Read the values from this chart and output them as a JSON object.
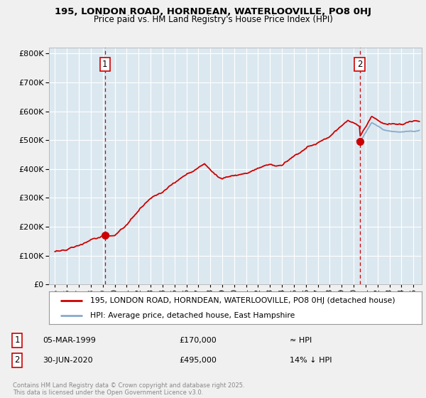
{
  "title_line1": "195, LONDON ROAD, HORNDEAN, WATERLOOVILLE, PO8 0HJ",
  "title_line2": "Price paid vs. HM Land Registry's House Price Index (HPI)",
  "ytick_values": [
    0,
    100000,
    200000,
    300000,
    400000,
    500000,
    600000,
    700000,
    800000
  ],
  "ylim": [
    0,
    820000
  ],
  "xlim_start": 1994.5,
  "xlim_end": 2025.7,
  "xticks": [
    1995,
    1996,
    1997,
    1998,
    1999,
    2000,
    2001,
    2002,
    2003,
    2004,
    2005,
    2006,
    2007,
    2008,
    2009,
    2010,
    2011,
    2012,
    2013,
    2014,
    2015,
    2016,
    2017,
    2018,
    2019,
    2020,
    2021,
    2022,
    2023,
    2024,
    2025
  ],
  "purchase1_x": 1999.17,
  "purchase1_y": 170000,
  "purchase2_x": 2020.5,
  "purchase2_y": 495000,
  "vline1_x": 1999.17,
  "vline2_x": 2020.5,
  "vline_color": "#cc0000",
  "legend_line1": "195, LONDON ROAD, HORNDEAN, WATERLOOVILLE, PO8 0HJ (detached house)",
  "legend_line2": "HPI: Average price, detached house, East Hampshire",
  "annotation1_date": "05-MAR-1999",
  "annotation1_price": "£170,000",
  "annotation1_hpi": "≈ HPI",
  "annotation2_date": "30-JUN-2020",
  "annotation2_price": "£495,000",
  "annotation2_hpi": "14% ↓ HPI",
  "footer": "Contains HM Land Registry data © Crown copyright and database right 2025.\nThis data is licensed under the Open Government Licence v3.0.",
  "red_line_color": "#cc0000",
  "blue_line_color": "#88aacc",
  "plot_bg_color": "#dce8f0",
  "background_color": "#f0f0f0",
  "grid_color": "#ffffff"
}
